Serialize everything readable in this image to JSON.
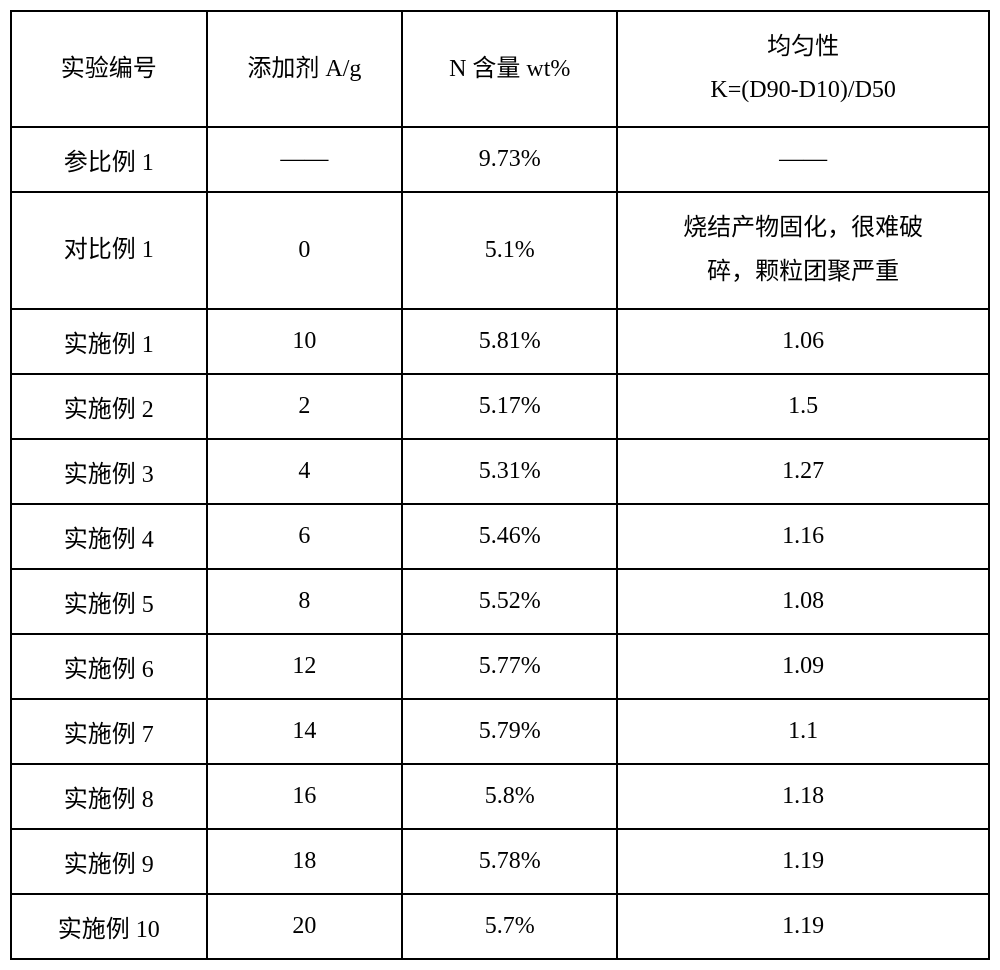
{
  "table": {
    "headers": {
      "col1": "实验编号",
      "col2": "添加剂 A/g",
      "col3": "N 含量 wt%",
      "col4_line1": "均匀性",
      "col4_line2": "K=(D90-D10)/D50"
    },
    "rows": [
      {
        "c1": "参比例 1",
        "c2": "——",
        "c3": "9.73%",
        "c4": "——",
        "tall": false
      },
      {
        "c1": "对比例 1",
        "c2": "0",
        "c3": "5.1%",
        "c4_line1": "烧结产物固化，很难破",
        "c4_line2": "碎，颗粒团聚严重",
        "tall": true
      },
      {
        "c1": "实施例 1",
        "c2": "10",
        "c3": "5.81%",
        "c4": "1.06",
        "tall": false
      },
      {
        "c1": "实施例 2",
        "c2": "2",
        "c3": "5.17%",
        "c4": "1.5",
        "tall": false
      },
      {
        "c1": "实施例 3",
        "c2": "4",
        "c3": "5.31%",
        "c4": "1.27",
        "tall": false
      },
      {
        "c1": "实施例 4",
        "c2": "6",
        "c3": "5.46%",
        "c4": "1.16",
        "tall": false
      },
      {
        "c1": "实施例 5",
        "c2": "8",
        "c3": "5.52%",
        "c4": "1.08",
        "tall": false
      },
      {
        "c1": "实施例 6",
        "c2": "12",
        "c3": "5.77%",
        "c4": "1.09",
        "tall": false
      },
      {
        "c1": "实施例 7",
        "c2": "14",
        "c3": "5.79%",
        "c4": "1.1",
        "tall": false
      },
      {
        "c1": "实施例 8",
        "c2": "16",
        "c3": "5.8%",
        "c4": "1.18",
        "tall": false
      },
      {
        "c1": "实施例 9",
        "c2": "18",
        "c3": "5.78%",
        "c4": "1.19",
        "tall": false
      },
      {
        "c1": "实施例 10",
        "c2": "20",
        "c3": "5.7%",
        "c4": "1.19",
        "tall": false
      }
    ],
    "border_color": "#000000",
    "background_color": "#ffffff",
    "font_size": 24
  }
}
